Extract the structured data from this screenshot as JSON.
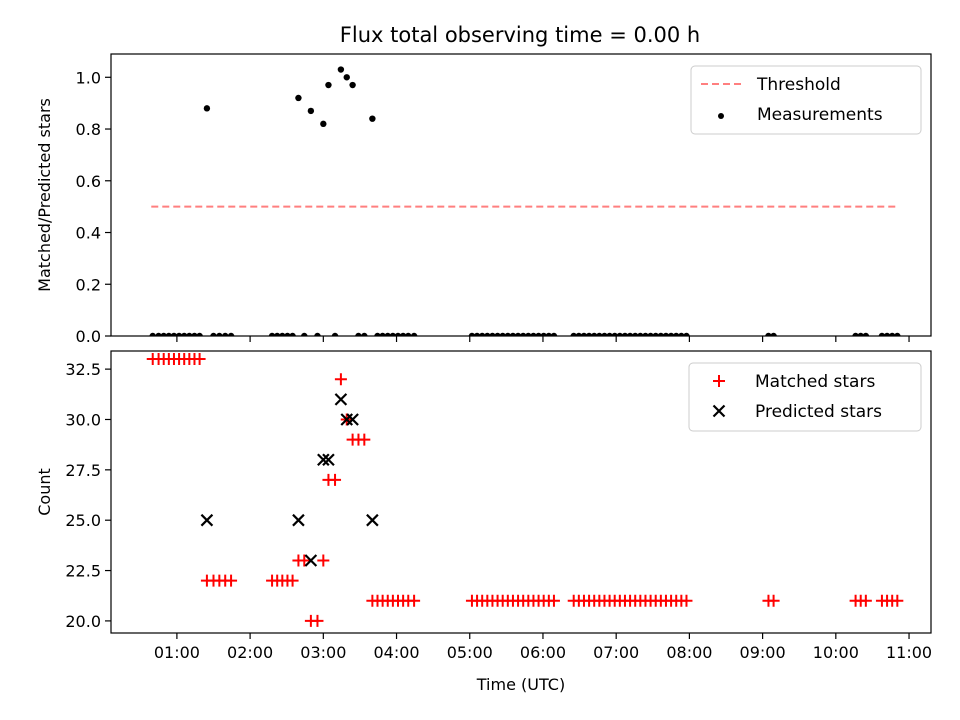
{
  "figure": {
    "title": "Flux total observing time = 0.00 h"
  },
  "chart_data": [
    {
      "type": "scatter",
      "title": "Flux total observing time = 0.00 h",
      "xlabel": "",
      "ylabel": "Matched/Predicted stars",
      "xlim": [
        0.1,
        11.3
      ],
      "ylim": [
        0,
        1.09
      ],
      "yticks": [
        "0.0",
        "0.2",
        "0.4",
        "0.6",
        "0.8",
        "1.0"
      ],
      "legend": "top-right",
      "threshold": {
        "name": "Threshold",
        "y": 0.5,
        "x_range": [
          0.65,
          10.85
        ],
        "color": "#ff7f7f",
        "style": "dashed"
      },
      "series": [
        {
          "name": "Measurements",
          "color": "#000000",
          "marker": "dot",
          "x": [
            0.67,
            0.75,
            0.82,
            0.89,
            0.96,
            1.03,
            1.1,
            1.17,
            1.24,
            1.31,
            1.41,
            1.5,
            1.58,
            1.66,
            1.74,
            2.3,
            2.37,
            2.44,
            2.51,
            2.58,
            2.66,
            2.74,
            2.83,
            2.92,
            3.0,
            3.07,
            3.16,
            3.24,
            3.32,
            3.4,
            3.48,
            3.56,
            3.67,
            3.74,
            3.81,
            3.88,
            3.95,
            4.02,
            4.09,
            4.16,
            4.24,
            5.03,
            5.1,
            5.17,
            5.24,
            5.31,
            5.38,
            5.45,
            5.52,
            5.59,
            5.66,
            5.73,
            5.8,
            5.87,
            5.94,
            6.01,
            6.08,
            6.15,
            6.42,
            6.49,
            6.56,
            6.63,
            6.7,
            6.77,
            6.84,
            6.91,
            6.98,
            7.05,
            7.12,
            7.19,
            7.26,
            7.33,
            7.4,
            7.47,
            7.54,
            7.61,
            7.68,
            7.75,
            7.82,
            7.89,
            7.96,
            9.08,
            9.15,
            10.27,
            10.34,
            10.41,
            10.63,
            10.7,
            10.77,
            10.84
          ],
          "y": [
            0,
            0,
            0,
            0,
            0,
            0,
            0,
            0,
            0,
            0,
            0.88,
            0,
            0,
            0,
            0,
            0,
            0,
            0,
            0,
            0,
            0.92,
            0,
            0.87,
            0,
            0.82,
            0.97,
            0,
            1.03,
            1.0,
            0.97,
            0,
            0,
            0.84,
            0,
            0,
            0,
            0,
            0,
            0,
            0,
            0,
            0,
            0,
            0,
            0,
            0,
            0,
            0,
            0,
            0,
            0,
            0,
            0,
            0,
            0,
            0,
            0,
            0,
            0,
            0,
            0,
            0,
            0,
            0,
            0,
            0,
            0,
            0,
            0,
            0,
            0,
            0,
            0,
            0,
            0,
            0,
            0,
            0,
            0,
            0,
            0,
            0,
            0,
            0,
            0,
            0,
            0,
            0,
            0,
            0
          ]
        }
      ]
    },
    {
      "type": "scatter",
      "xlabel": "Time (UTC)",
      "ylabel": "Count",
      "xlim": [
        0.1,
        11.3
      ],
      "ylim": [
        19.4,
        33.4
      ],
      "yticks": [
        "20.0",
        "22.5",
        "25.0",
        "27.5",
        "30.0",
        "32.5"
      ],
      "xticks": [
        "01:00",
        "02:00",
        "03:00",
        "04:00",
        "05:00",
        "06:00",
        "07:00",
        "08:00",
        "09:00",
        "10:00",
        "11:00"
      ],
      "legend": "top-right",
      "series": [
        {
          "name": "Matched stars",
          "color": "#ff0000",
          "marker": "plus",
          "x": [
            0.67,
            0.75,
            0.82,
            0.89,
            0.96,
            1.03,
            1.1,
            1.17,
            1.24,
            1.31,
            1.41,
            1.5,
            1.58,
            1.66,
            1.74,
            2.3,
            2.37,
            2.44,
            2.51,
            2.58,
            2.66,
            2.74,
            2.83,
            2.92,
            3.0,
            3.07,
            3.16,
            3.24,
            3.32,
            3.4,
            3.48,
            3.56,
            3.67,
            3.74,
            3.81,
            3.88,
            3.95,
            4.02,
            4.09,
            4.16,
            4.24,
            5.03,
            5.1,
            5.17,
            5.24,
            5.31,
            5.38,
            5.45,
            5.52,
            5.59,
            5.66,
            5.73,
            5.8,
            5.87,
            5.94,
            6.01,
            6.08,
            6.15,
            6.42,
            6.49,
            6.56,
            6.63,
            6.7,
            6.77,
            6.84,
            6.91,
            6.98,
            7.05,
            7.12,
            7.19,
            7.26,
            7.33,
            7.4,
            7.47,
            7.54,
            7.61,
            7.68,
            7.75,
            7.82,
            7.89,
            7.96,
            9.08,
            9.15,
            10.27,
            10.34,
            10.41,
            10.63,
            10.7,
            10.77,
            10.84
          ],
          "y": [
            33,
            33,
            33,
            33,
            33,
            33,
            33,
            33,
            33,
            33,
            22,
            22,
            22,
            22,
            22,
            22,
            22,
            22,
            22,
            22,
            23,
            23,
            20,
            20,
            23,
            27,
            27,
            32,
            30,
            29,
            29,
            29,
            21,
            21,
            21,
            21,
            21,
            21,
            21,
            21,
            21,
            21,
            21,
            21,
            21,
            21,
            21,
            21,
            21,
            21,
            21,
            21,
            21,
            21,
            21,
            21,
            21,
            21,
            21,
            21,
            21,
            21,
            21,
            21,
            21,
            21,
            21,
            21,
            21,
            21,
            21,
            21,
            21,
            21,
            21,
            21,
            21,
            21,
            21,
            21,
            21,
            21,
            21,
            21,
            21,
            21,
            21,
            21,
            21,
            21
          ]
        },
        {
          "name": "Predicted stars",
          "color": "#000000",
          "marker": "x",
          "x": [
            1.41,
            2.66,
            2.83,
            3.0,
            3.07,
            3.24,
            3.32,
            3.4,
            3.67
          ],
          "y": [
            25,
            25,
            23,
            28,
            28,
            31,
            30,
            30,
            25
          ]
        }
      ]
    }
  ]
}
